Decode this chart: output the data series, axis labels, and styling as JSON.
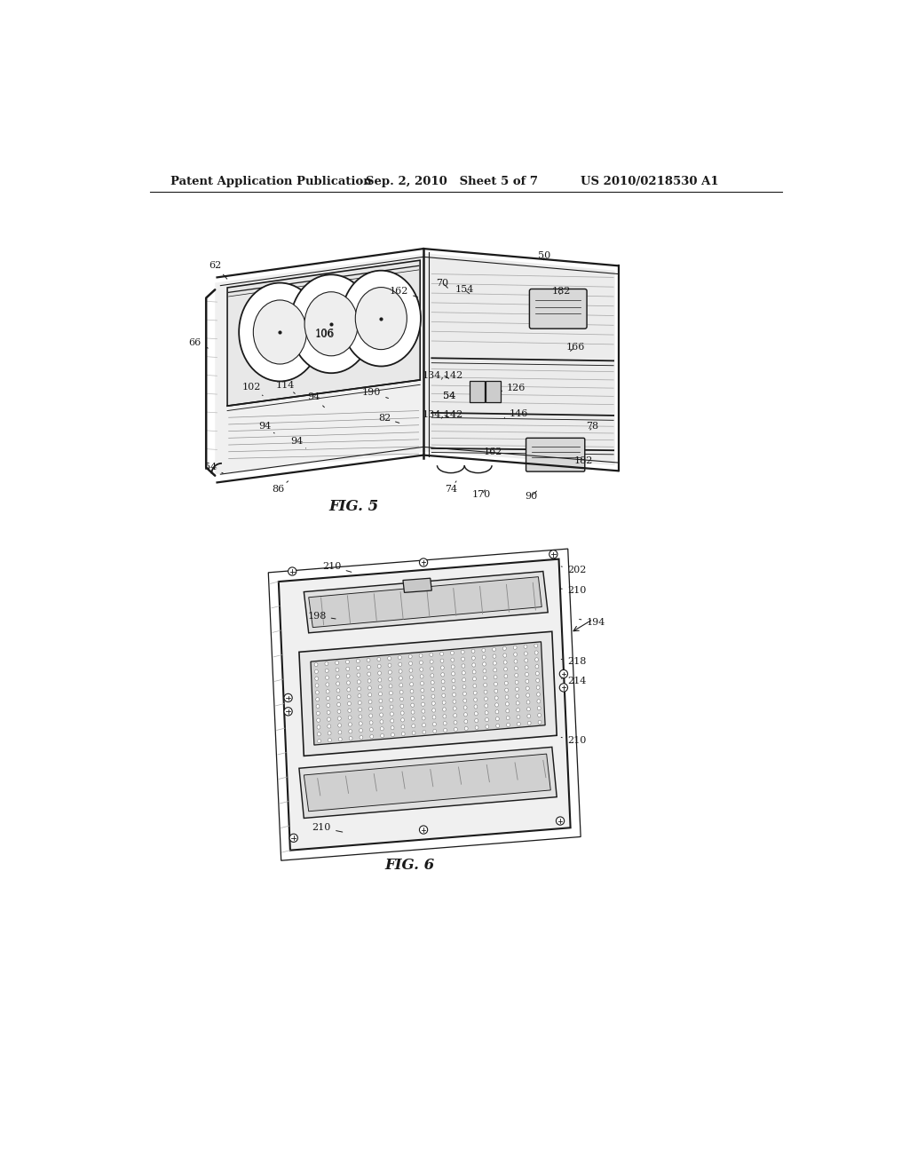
{
  "bg_color": "#ffffff",
  "header_left": "Patent Application Publication",
  "header_mid": "Sep. 2, 2010   Sheet 5 of 7",
  "header_right": "US 2010/0218530 A1",
  "fig5_label": "FIG. 5",
  "fig6_label": "FIG. 6",
  "dark": "#1a1a1a",
  "gray1": "#f0f0f0",
  "gray2": "#d8d8d8",
  "gray3": "#c0c0c0",
  "gray4": "#a8a8a8"
}
